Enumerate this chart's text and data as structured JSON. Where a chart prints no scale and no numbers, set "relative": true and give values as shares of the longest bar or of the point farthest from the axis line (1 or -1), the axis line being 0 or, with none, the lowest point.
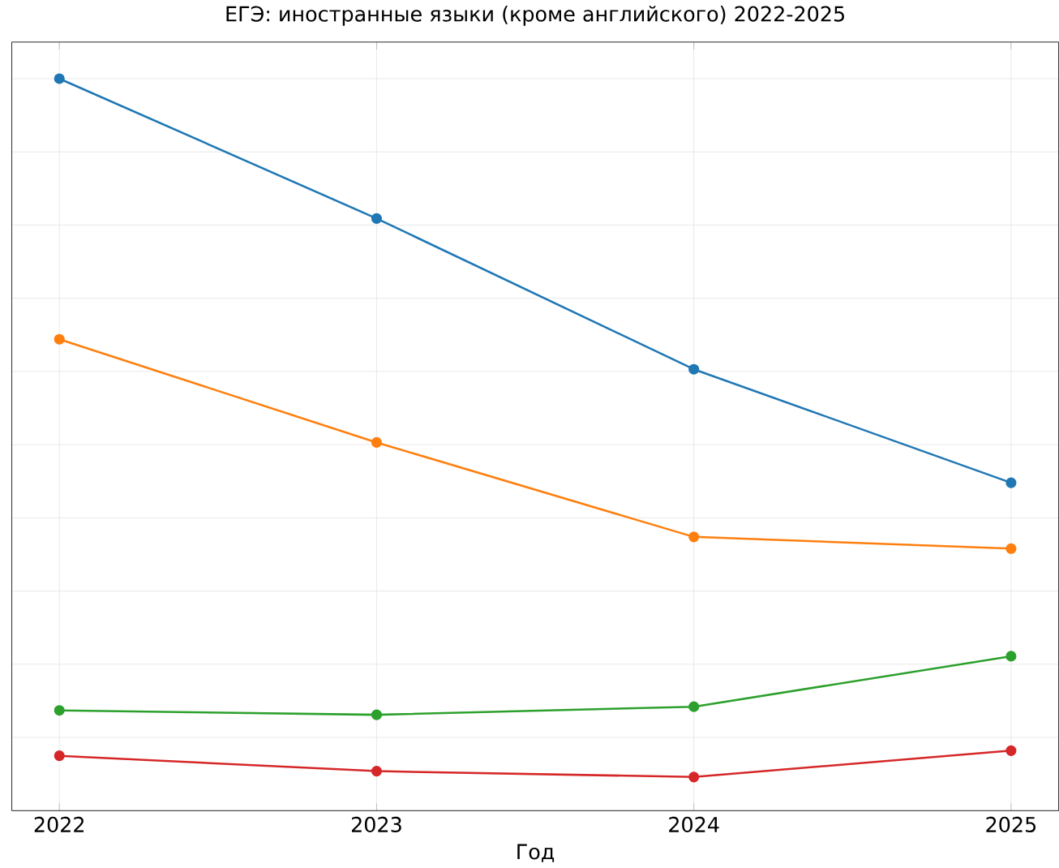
{
  "chart_data": {
    "type": "line",
    "title": "ЕГЭ: иностранные языки (кроме английского) 2022-2025",
    "xlabel": "Год",
    "x": [
      2022,
      2023,
      2024,
      2025
    ],
    "xlim": [
      2021.85,
      2025.15
    ],
    "xticks": [
      2022,
      2023,
      2024,
      2025
    ],
    "relative": true,
    "tick_labels": "x",
    "grid": true,
    "marker": "circle",
    "line_style": "solid",
    "series": [
      {
        "color": "#1f77b4",
        "values": [
          1,
          0.809,
          0.603,
          0.448
        ]
      },
      {
        "color": "#ff7f0e",
        "values": [
          0.644,
          0.503,
          0.374,
          0.358
        ]
      },
      {
        "color": "#2ca02c",
        "values": [
          0.137,
          0.131,
          0.142,
          0.211
        ]
      },
      {
        "color": "#d62728",
        "values": [
          0.075,
          0.054,
          0.046,
          0.082
        ]
      }
    ]
  }
}
